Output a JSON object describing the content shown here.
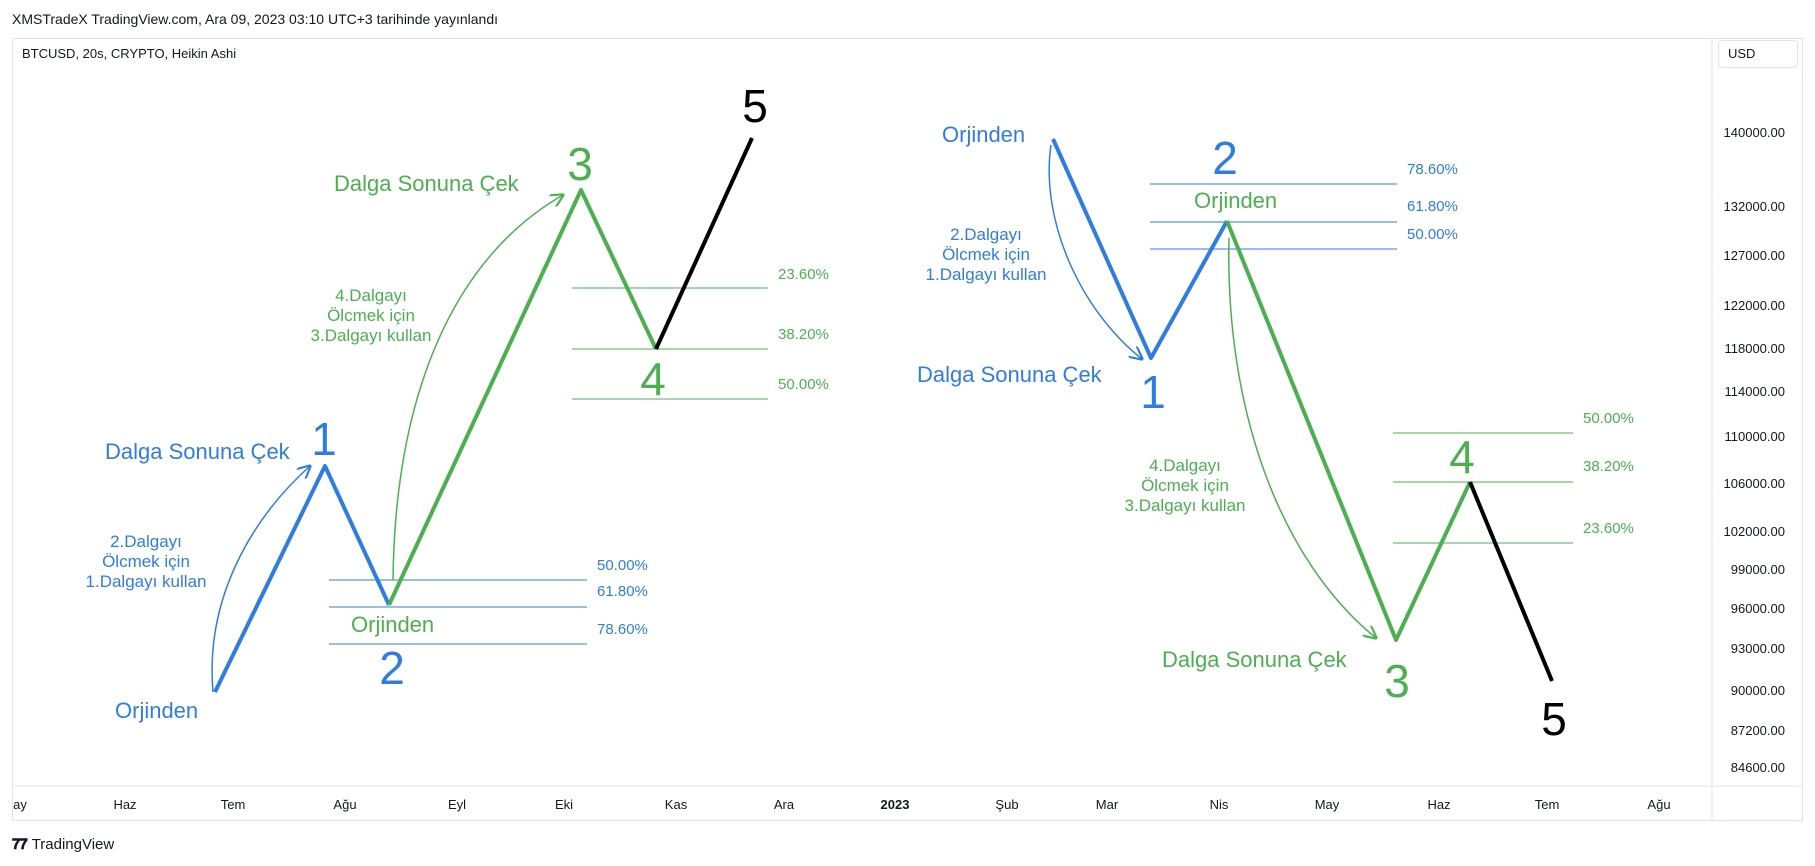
{
  "header": {
    "publish_info": "XMSTradeX TradingView.com, Ara 09, 2023 03:10 UTC+3 tarihinde yayınlandı",
    "symbol_title": "BTCUSD, 20s, CRYPTO, Heikin Ashi",
    "currency_button": "USD"
  },
  "price_axis": {
    "labels": [
      "140000.00",
      "132000.00",
      "127000.00",
      "122000.00",
      "118000.00",
      "114000.00",
      "110000.00",
      "106000.00",
      "102000.00",
      "99000.00",
      "96000.00",
      "93000.00",
      "90000.00",
      "87200.00",
      "84600.00"
    ]
  },
  "time_axis": {
    "labels": [
      "ay",
      "Haz",
      "Tem",
      "Ağu",
      "Eyl",
      "Eki",
      "Kas",
      "Ara",
      "2023",
      "Şub",
      "Mar",
      "Nis",
      "May",
      "Haz",
      "Tem",
      "Ağu"
    ],
    "bold": "2023"
  },
  "drawings": {
    "left": {
      "wave_numbers": [
        "1",
        "2",
        "3",
        "4",
        "5"
      ],
      "label_origin_1": "Orjinden",
      "label_pull_1": "Dalga Sonuna Çek",
      "label_origin_2": "Orjinden",
      "label_pull_3": "Dalga Sonuna Çek",
      "note_wave2": [
        "2.Dalgayı",
        "Ölcmek için",
        "1.Dalgayı kullan"
      ],
      "note_wave4": [
        "4.Dalgayı",
        "Ölcmek için",
        "3.Dalgayı kullan"
      ],
      "fib_blue": [
        "50.00%",
        "61.80%",
        "78.60%"
      ],
      "fib_green": [
        "23.60%",
        "38.20%",
        "50.00%"
      ]
    },
    "right": {
      "wave_numbers": [
        "1",
        "2",
        "3",
        "4",
        "5"
      ],
      "label_origin_1": "Orjinden",
      "label_pull_1": "Dalga Sonuna Çek",
      "label_origin_2": "Orjinden",
      "label_pull_3": "Dalga Sonuna Çek",
      "note_wave2": [
        "2.Dalgayı",
        "Ölcmek için",
        "1.Dalgayı kullan"
      ],
      "note_wave4": [
        "4.Dalgayı",
        "Ölcmek için",
        "3.Dalgayı kullan"
      ],
      "fib_blue": [
        "78.60%",
        "61.80%",
        "50.00%"
      ],
      "fib_green": [
        "50.00%",
        "38.20%",
        "23.60%"
      ]
    }
  },
  "colors": {
    "blue": "#2f7de1",
    "green": "#4caf50",
    "black": "#000000",
    "axis_text": "#131722",
    "grid_border": "#e0e3eb"
  },
  "footer": {
    "brand": "TradingView",
    "logo_icon": "tradingview-logo-icon"
  }
}
